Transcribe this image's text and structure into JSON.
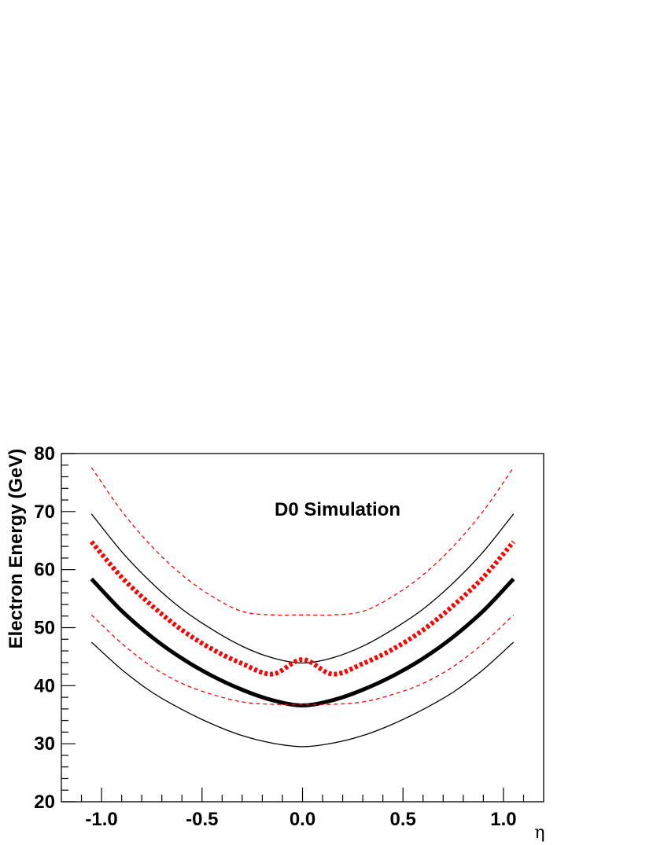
{
  "chart_data": {
    "type": "line",
    "title": "D0 Simulation",
    "xlabel": "η",
    "ylabel": "Electron Energy (GeV)",
    "xlim": [
      -1.2,
      1.2
    ],
    "ylim": [
      20,
      80
    ],
    "x_ticks": [
      "-1.0",
      "-0.5",
      "0.0",
      "0.5",
      "1.0"
    ],
    "y_ticks": [
      "20",
      "30",
      "40",
      "50",
      "60",
      "70",
      "80"
    ],
    "grid": false,
    "x": [
      -1.05,
      -0.9,
      -0.75,
      -0.6,
      -0.45,
      -0.3,
      -0.15,
      0.0,
      0.15,
      0.3,
      0.45,
      0.6,
      0.75,
      0.9,
      1.05
    ],
    "series": [
      {
        "color": "#000000",
        "style": "solid-thick",
        "values": [
          58.4,
          52.9,
          48.4,
          44.7,
          41.7,
          39.3,
          37.5,
          36.6,
          37.5,
          39.3,
          41.7,
          44.7,
          48.4,
          52.9,
          58.4
        ]
      },
      {
        "color": "#000000",
        "style": "solid-thin",
        "values": [
          69.6,
          63.1,
          57.7,
          53.2,
          49.7,
          46.8,
          44.8,
          43.9,
          44.8,
          46.8,
          49.7,
          53.2,
          57.7,
          63.1,
          69.6
        ]
      },
      {
        "color": "#000000",
        "style": "solid-thin",
        "values": [
          47.5,
          42.8,
          38.9,
          35.9,
          33.4,
          31.4,
          30.1,
          29.5,
          30.1,
          31.4,
          33.4,
          35.9,
          38.9,
          42.8,
          47.5
        ]
      },
      {
        "color": "#ff0000",
        "style": "dotted-thick",
        "values": [
          64.8,
          58.7,
          53.8,
          49.6,
          46.3,
          43.8,
          42.0,
          44.5,
          42.0,
          43.8,
          46.3,
          49.6,
          53.8,
          58.7,
          64.8
        ]
      },
      {
        "color": "#ff0000",
        "style": "dashed-thin",
        "values": [
          77.6,
          70.1,
          64.0,
          59.1,
          55.4,
          52.8,
          52.2,
          52.2,
          52.2,
          52.8,
          55.4,
          59.1,
          64.0,
          70.1,
          77.6
        ]
      },
      {
        "color": "#ff0000",
        "style": "dashed-thin",
        "values": [
          52.2,
          47.3,
          43.3,
          40.4,
          38.5,
          37.2,
          36.8,
          36.8,
          36.8,
          37.2,
          38.5,
          40.4,
          43.3,
          47.3,
          52.2
        ]
      }
    ]
  }
}
